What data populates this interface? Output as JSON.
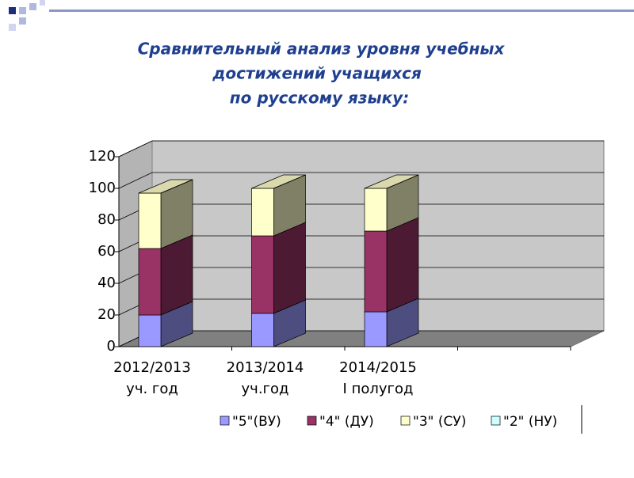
{
  "chart_data": {
    "type": "bar3d_stacked",
    "title": [
      "Сравнительный анализ уровня учебных",
      "достижений учащихся",
      "по  русскому языку:"
    ],
    "categories": [
      [
        "2012/2013",
        "уч. год"
      ],
      [
        "2013/2014",
        "уч.год"
      ],
      [
        "2014/2015",
        "I полугод"
      ],
      null
    ],
    "series": [
      {
        "name": "\"5\"(ВУ)",
        "color": "#9999ff",
        "values": [
          20,
          21,
          22,
          null
        ]
      },
      {
        "name": "\"4\" (ДУ)",
        "color": "#993366",
        "values": [
          42,
          49,
          51,
          null
        ]
      },
      {
        "name": "\"3\" (СУ)",
        "color": "#ffffcc",
        "values": [
          35,
          30,
          27,
          null
        ]
      },
      {
        "name": "\"2\" (НУ)",
        "color": "#ccffff",
        "values": [
          0,
          0,
          0,
          null
        ]
      }
    ],
    "ylim": [
      0,
      120
    ],
    "yticks": [
      0,
      20,
      40,
      60,
      80,
      100,
      120
    ],
    "grid": true,
    "legend": "bottom"
  }
}
